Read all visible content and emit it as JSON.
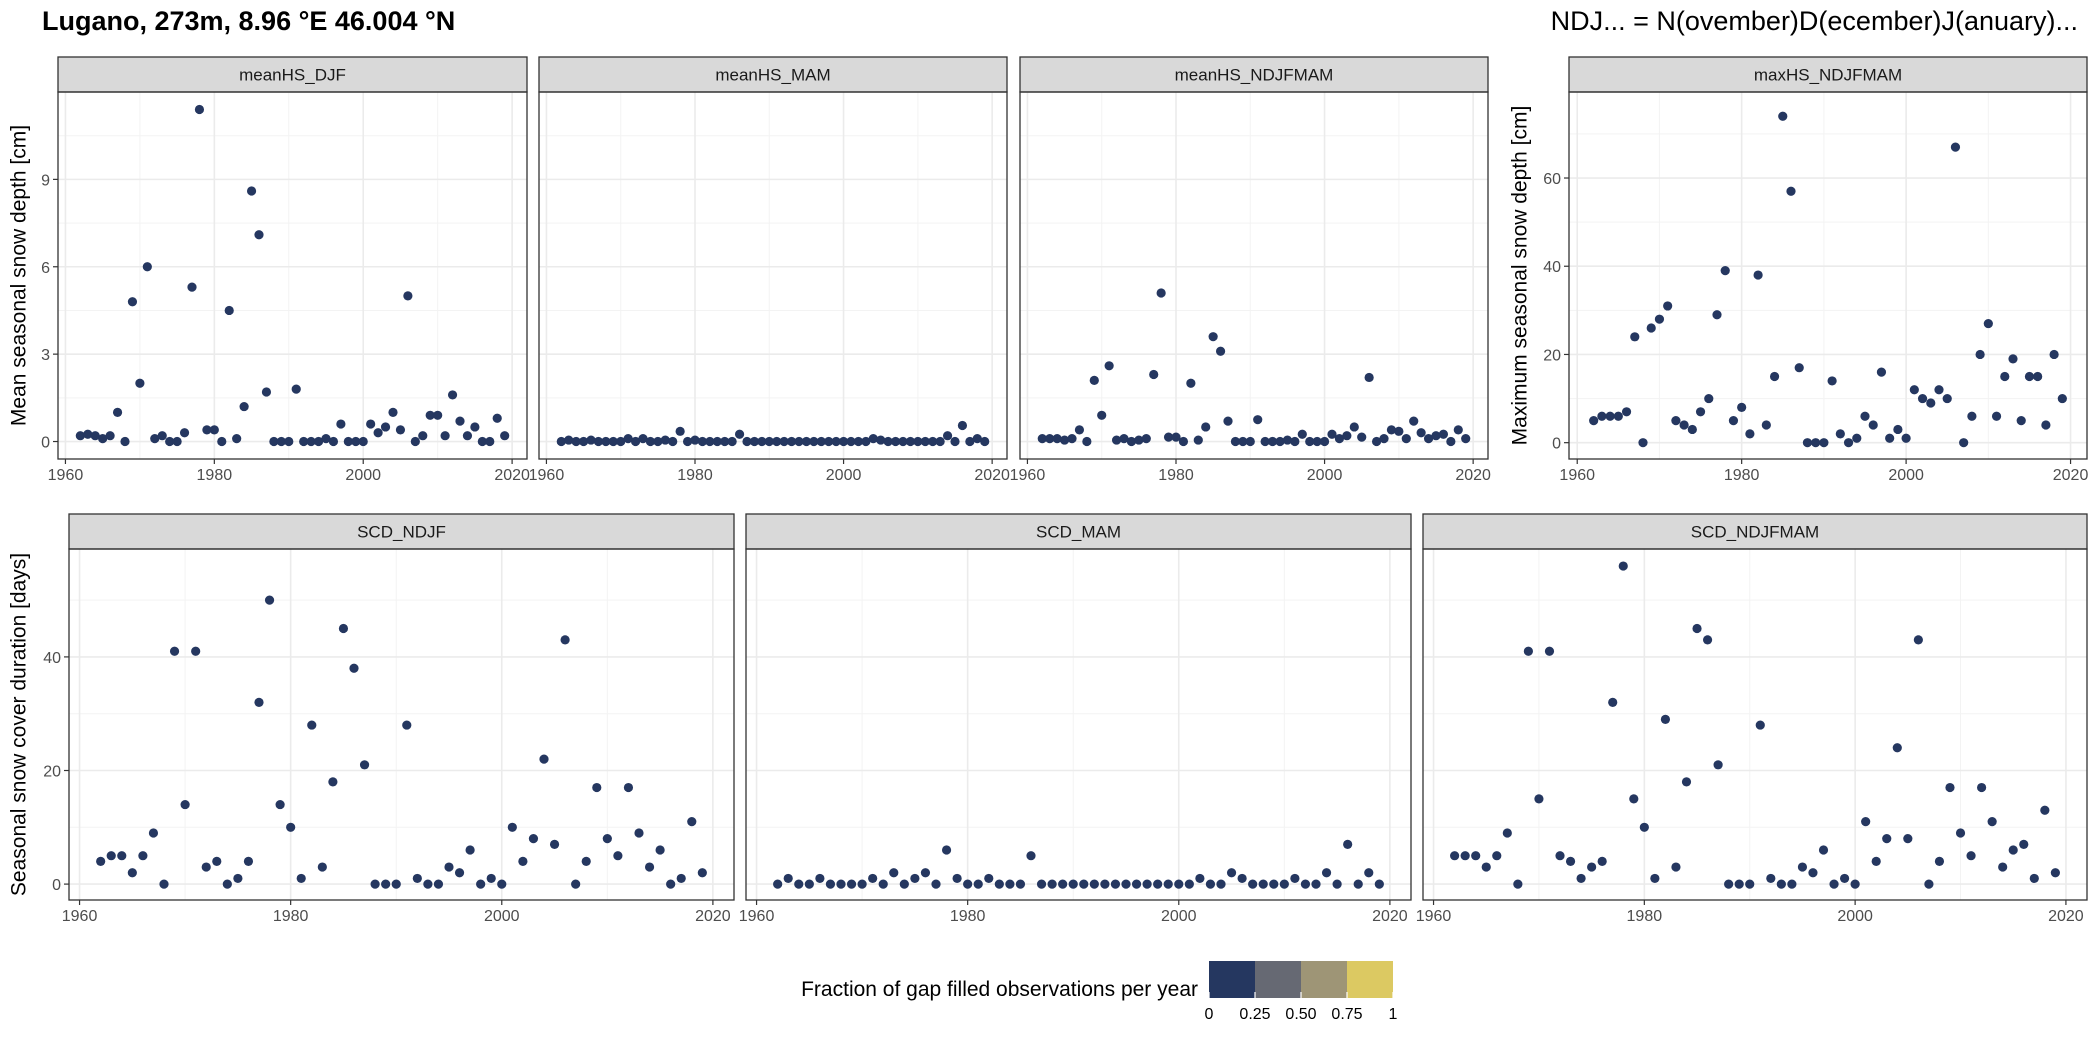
{
  "header": {
    "title": "Lugano, 273m, 8.96 °E 46.004 °N",
    "note": "NDJ... = N(ovember)D(ecember)J(anuary)..."
  },
  "legend": {
    "title": "Fraction of gap filled observations per year",
    "colors": [
      "#253760",
      "#666973",
      "#9e9576",
      "#dcc962"
    ],
    "tick_labels": [
      "0",
      "0.25",
      "0.50",
      "0.75",
      "1"
    ]
  },
  "point_color": "#253760",
  "chart_data": [
    {
      "type": "scatter",
      "title": "meanHS_DJF",
      "ylabel": "Mean seasonal snow depth [cm]",
      "xlim": [
        1959,
        2022
      ],
      "ylim": [
        -0.6,
        12.0
      ],
      "xticks": [
        1960,
        1980,
        2000,
        2020
      ],
      "yticks": [
        0,
        3,
        6,
        9
      ],
      "x": [
        1962,
        1963,
        1964,
        1965,
        1966,
        1967,
        1968,
        1969,
        1970,
        1971,
        1972,
        1973,
        1974,
        1975,
        1976,
        1977,
        1978,
        1979,
        1980,
        1981,
        1982,
        1983,
        1984,
        1985,
        1986,
        1987,
        1988,
        1989,
        1990,
        1991,
        1992,
        1993,
        1994,
        1995,
        1996,
        1997,
        1998,
        1999,
        2000,
        2001,
        2002,
        2003,
        2004,
        2005,
        2006,
        2007,
        2008,
        2009,
        2010,
        2011,
        2012,
        2013,
        2014,
        2015,
        2016,
        2017,
        2018,
        2019
      ],
      "y": [
        0.2,
        0.25,
        0.2,
        0.1,
        0.2,
        1.0,
        0.0,
        4.8,
        2.0,
        6.0,
        0.1,
        0.2,
        0.0,
        0.0,
        0.3,
        5.3,
        11.4,
        0.4,
        0.4,
        0.0,
        4.5,
        0.1,
        1.2,
        8.6,
        7.1,
        1.7,
        0.0,
        0.0,
        0.0,
        1.8,
        0.0,
        0.0,
        0.0,
        0.1,
        0.0,
        0.6,
        0.0,
        0.0,
        0.0,
        0.6,
        0.3,
        0.5,
        1.0,
        0.4,
        5.0,
        0.0,
        0.2,
        0.9,
        0.9,
        0.2,
        1.6,
        0.7,
        0.2,
        0.5,
        0.0,
        0.0,
        0.8,
        0.2
      ]
    },
    {
      "type": "scatter",
      "title": "meanHS_MAM",
      "ylabel": "",
      "xlim": [
        1959,
        2022
      ],
      "ylim": [
        -0.6,
        12.0
      ],
      "xticks": [
        1960,
        1980,
        2000,
        2020
      ],
      "yticks": [],
      "x": [
        1962,
        1963,
        1964,
        1965,
        1966,
        1967,
        1968,
        1969,
        1970,
        1971,
        1972,
        1973,
        1974,
        1975,
        1976,
        1977,
        1978,
        1979,
        1980,
        1981,
        1982,
        1983,
        1984,
        1985,
        1986,
        1987,
        1988,
        1989,
        1990,
        1991,
        1992,
        1993,
        1994,
        1995,
        1996,
        1997,
        1998,
        1999,
        2000,
        2001,
        2002,
        2003,
        2004,
        2005,
        2006,
        2007,
        2008,
        2009,
        2010,
        2011,
        2012,
        2013,
        2014,
        2015,
        2016,
        2017,
        2018,
        2019
      ],
      "y": [
        0.0,
        0.05,
        0.0,
        0.0,
        0.05,
        0.0,
        0.0,
        0.0,
        0.0,
        0.1,
        0.0,
        0.1,
        0.0,
        0.0,
        0.05,
        0.0,
        0.35,
        0.0,
        0.05,
        0.0,
        0.0,
        0.0,
        0.0,
        0.0,
        0.25,
        0.0,
        0.0,
        0.0,
        0.0,
        0.0,
        0.0,
        0.0,
        0.0,
        0.0,
        0.0,
        0.0,
        0.0,
        0.0,
        0.0,
        0.0,
        0.0,
        0.0,
        0.1,
        0.05,
        0.0,
        0.0,
        0.0,
        0.0,
        0.0,
        0.0,
        0.0,
        0.0,
        0.2,
        0.0,
        0.55,
        0.0,
        0.1,
        0.0
      ]
    },
    {
      "type": "scatter",
      "title": "meanHS_NDJFMAM",
      "ylabel": "",
      "xlim": [
        1959,
        2022
      ],
      "ylim": [
        -0.6,
        12.0
      ],
      "xticks": [
        1960,
        1980,
        2000,
        2020
      ],
      "yticks": [],
      "x": [
        1962,
        1963,
        1964,
        1965,
        1966,
        1967,
        1968,
        1969,
        1970,
        1971,
        1972,
        1973,
        1974,
        1975,
        1976,
        1977,
        1978,
        1979,
        1980,
        1981,
        1982,
        1983,
        1984,
        1985,
        1986,
        1987,
        1988,
        1989,
        1990,
        1991,
        1992,
        1993,
        1994,
        1995,
        1996,
        1997,
        1998,
        1999,
        2000,
        2001,
        2002,
        2003,
        2004,
        2005,
        2006,
        2007,
        2008,
        2009,
        2010,
        2011,
        2012,
        2013,
        2014,
        2015,
        2016,
        2017,
        2018,
        2019
      ],
      "y": [
        0.1,
        0.1,
        0.1,
        0.05,
        0.1,
        0.4,
        0.0,
        2.1,
        0.9,
        2.6,
        0.05,
        0.1,
        0.0,
        0.05,
        0.1,
        2.3,
        5.1,
        0.15,
        0.15,
        0.0,
        2.0,
        0.05,
        0.5,
        3.6,
        3.1,
        0.7,
        0.0,
        0.0,
        0.0,
        0.75,
        0.0,
        0.0,
        0.0,
        0.05,
        0.0,
        0.25,
        0.0,
        0.0,
        0.0,
        0.25,
        0.1,
        0.2,
        0.5,
        0.15,
        2.2,
        0.0,
        0.1,
        0.4,
        0.35,
        0.1,
        0.7,
        0.3,
        0.1,
        0.2,
        0.25,
        0.0,
        0.4,
        0.1
      ]
    },
    {
      "type": "scatter",
      "title": "maxHS_NDJFMAM",
      "ylabel": "Maximum seasonal snow depth [cm]",
      "xlim": [
        1959,
        2022
      ],
      "ylim": [
        -3.7,
        79.5
      ],
      "xticks": [
        1960,
        1980,
        2000,
        2020
      ],
      "yticks": [
        0,
        20,
        40,
        60
      ],
      "x": [
        1962,
        1963,
        1964,
        1965,
        1966,
        1967,
        1968,
        1969,
        1970,
        1971,
        1972,
        1973,
        1974,
        1975,
        1976,
        1977,
        1978,
        1979,
        1980,
        1981,
        1982,
        1983,
        1984,
        1985,
        1986,
        1987,
        1988,
        1989,
        1990,
        1991,
        1992,
        1993,
        1994,
        1995,
        1996,
        1997,
        1998,
        1999,
        2000,
        2001,
        2002,
        2003,
        2004,
        2005,
        2006,
        2007,
        2008,
        2009,
        2010,
        2011,
        2012,
        2013,
        2014,
        2015,
        2016,
        2017,
        2018,
        2019
      ],
      "y": [
        5,
        6,
        6,
        6,
        7,
        24,
        0,
        26,
        28,
        31,
        5,
        4,
        3,
        7,
        10,
        29,
        39,
        5,
        8,
        2,
        38,
        4,
        15,
        74,
        57,
        17,
        0,
        0,
        0,
        14,
        2,
        0,
        1,
        6,
        4,
        16,
        1,
        3,
        1,
        12,
        10,
        9,
        12,
        10,
        67,
        0,
        6,
        20,
        27,
        6,
        15,
        19,
        5,
        15,
        15,
        4,
        20,
        10
      ]
    },
    {
      "type": "scatter",
      "title": "SCD_NDJF",
      "ylabel": "Seasonal snow cover duration [days]",
      "xlim": [
        1959,
        2022
      ],
      "ylim": [
        -2.8,
        59.0
      ],
      "xticks": [
        1960,
        1980,
        2000,
        2020
      ],
      "yticks": [
        0,
        20,
        40
      ],
      "x": [
        1962,
        1963,
        1964,
        1965,
        1966,
        1967,
        1968,
        1969,
        1970,
        1971,
        1972,
        1973,
        1974,
        1975,
        1976,
        1977,
        1978,
        1979,
        1980,
        1981,
        1982,
        1983,
        1984,
        1985,
        1986,
        1987,
        1988,
        1989,
        1990,
        1991,
        1992,
        1993,
        1994,
        1995,
        1996,
        1997,
        1998,
        1999,
        2000,
        2001,
        2002,
        2003,
        2004,
        2005,
        2006,
        2007,
        2008,
        2009,
        2010,
        2011,
        2012,
        2013,
        2014,
        2015,
        2016,
        2017,
        2018,
        2019
      ],
      "y": [
        4,
        5,
        5,
        2,
        5,
        9,
        0,
        41,
        14,
        41,
        3,
        4,
        0,
        1,
        4,
        32,
        50,
        14,
        10,
        1,
        28,
        3,
        18,
        45,
        38,
        21,
        0,
        0,
        0,
        28,
        1,
        0,
        0,
        3,
        2,
        6,
        0,
        1,
        0,
        10,
        4,
        8,
        22,
        7,
        43,
        0,
        4,
        17,
        8,
        5,
        17,
        9,
        3,
        6,
        0,
        1,
        11,
        2
      ]
    },
    {
      "type": "scatter",
      "title": "SCD_MAM",
      "ylabel": "",
      "xlim": [
        1959,
        2022
      ],
      "ylim": [
        -2.8,
        59.0
      ],
      "xticks": [
        1960,
        1980,
        2000,
        2020
      ],
      "yticks": [],
      "x": [
        1962,
        1963,
        1964,
        1965,
        1966,
        1967,
        1968,
        1969,
        1970,
        1971,
        1972,
        1973,
        1974,
        1975,
        1976,
        1977,
        1978,
        1979,
        1980,
        1981,
        1982,
        1983,
        1984,
        1985,
        1986,
        1987,
        1988,
        1989,
        1990,
        1991,
        1992,
        1993,
        1994,
        1995,
        1996,
        1997,
        1998,
        1999,
        2000,
        2001,
        2002,
        2003,
        2004,
        2005,
        2006,
        2007,
        2008,
        2009,
        2010,
        2011,
        2012,
        2013,
        2014,
        2015,
        2016,
        2017,
        2018,
        2019
      ],
      "y": [
        0,
        1,
        0,
        0,
        1,
        0,
        0,
        0,
        0,
        1,
        0,
        2,
        0,
        1,
        2,
        0,
        6,
        1,
        0,
        0,
        1,
        0,
        0,
        0,
        5,
        0,
        0,
        0,
        0,
        0,
        0,
        0,
        0,
        0,
        0,
        0,
        0,
        0,
        0,
        0,
        1,
        0,
        0,
        2,
        1,
        0,
        0,
        0,
        0,
        1,
        0,
        0,
        2,
        0,
        7,
        0,
        2,
        0
      ]
    },
    {
      "type": "scatter",
      "title": "SCD_NDJFMAM",
      "ylabel": "",
      "xlim": [
        1959,
        2022
      ],
      "ylim": [
        -2.8,
        59.0
      ],
      "xticks": [
        1960,
        1980,
        2000,
        2020
      ],
      "yticks": [],
      "x": [
        1962,
        1963,
        1964,
        1965,
        1966,
        1967,
        1968,
        1969,
        1970,
        1971,
        1972,
        1973,
        1974,
        1975,
        1976,
        1977,
        1978,
        1979,
        1980,
        1981,
        1982,
        1983,
        1984,
        1985,
        1986,
        1987,
        1988,
        1989,
        1990,
        1991,
        1992,
        1993,
        1994,
        1995,
        1996,
        1997,
        1998,
        1999,
        2000,
        2001,
        2002,
        2003,
        2004,
        2005,
        2006,
        2007,
        2008,
        2009,
        2010,
        2011,
        2012,
        2013,
        2014,
        2015,
        2016,
        2017,
        2018,
        2019
      ],
      "y": [
        5,
        5,
        5,
        3,
        5,
        9,
        0,
        41,
        15,
        41,
        5,
        4,
        1,
        3,
        4,
        32,
        56,
        15,
        10,
        1,
        29,
        3,
        18,
        45,
        43,
        21,
        0,
        0,
        0,
        28,
        1,
        0,
        0,
        3,
        2,
        6,
        0,
        1,
        0,
        11,
        4,
        8,
        24,
        8,
        43,
        0,
        4,
        17,
        9,
        5,
        17,
        11,
        3,
        6,
        7,
        1,
        13,
        2
      ]
    }
  ]
}
